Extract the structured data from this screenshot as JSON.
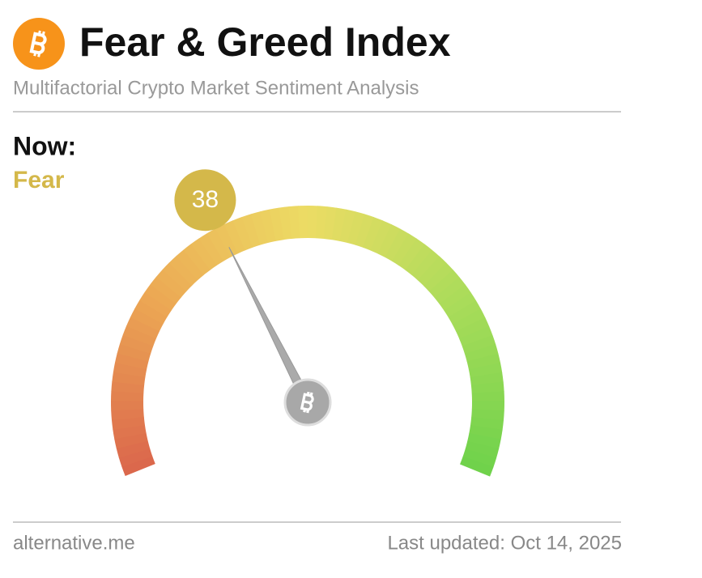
{
  "header": {
    "title": "Fear & Greed Index",
    "subtitle": "Multifactorial Crypto Market Sentiment Analysis"
  },
  "chart_data": {
    "type": "gauge",
    "label": "Now:",
    "classification": "Fear",
    "value": 38,
    "ylim": [
      0,
      100
    ],
    "color": "#d4b84a"
  },
  "footer": {
    "source": "alternative.me",
    "updated": "Last updated: Oct 14, 2025"
  }
}
